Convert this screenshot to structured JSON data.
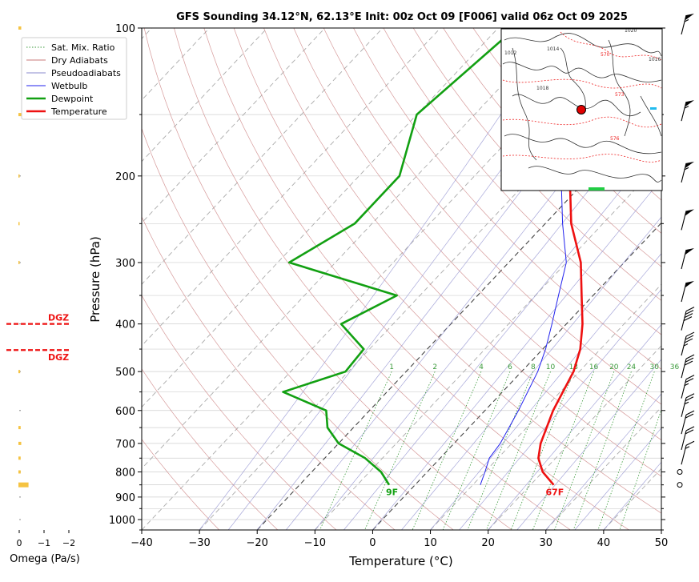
{
  "chart_data": {
    "type": "line",
    "title": "GFS Sounding 34.12°N, 62.13°E Init: 00z Oct 09 [F006] valid 06z Oct 09 2025",
    "xlabel": "Temperature (°C)",
    "ylabel": "Pressure (hPa)",
    "xlim": [
      -40,
      50
    ],
    "ylim": [
      1050,
      100
    ],
    "x_scale": "skew-T (log-p)",
    "grid": true,
    "legend_position": "upper-left",
    "x_ticks": [
      "−40",
      "−30",
      "−20",
      "−10",
      "0",
      "10",
      "20",
      "30",
      "40",
      "50"
    ],
    "y_ticks": [
      "100",
      "200",
      "300",
      "400",
      "500",
      "600",
      "700",
      "800",
      "900",
      "1000"
    ],
    "legend": [
      {
        "label": "Sat. Mix. Ratio",
        "color": "#3a9a3a",
        "style": "dotted"
      },
      {
        "label": "Dry Adiabats",
        "color": "#c87878",
        "style": "solid"
      },
      {
        "label": "Pseudoadiabats",
        "color": "#8888cc",
        "style": "solid"
      },
      {
        "label": "Wetbulb",
        "color": "#2222ee",
        "style": "solid"
      },
      {
        "label": "Dewpoint",
        "color": "#12a012",
        "style": "solid"
      },
      {
        "label": "Temperature",
        "color": "#ee1111",
        "style": "solid"
      }
    ],
    "mixing_ratio_labels": [
      "1",
      "2",
      "4",
      "6",
      "8",
      "10",
      "13",
      "16",
      "20",
      "24",
      "30",
      "36"
    ],
    "series": [
      {
        "name": "Temperature",
        "color": "#ee1111",
        "points": [
          [
            850,
            24
          ],
          [
            800,
            20
          ],
          [
            750,
            17
          ],
          [
            700,
            15
          ],
          [
            600,
            11.8
          ],
          [
            500,
            9
          ],
          [
            450,
            6.5
          ],
          [
            400,
            2.8
          ],
          [
            350,
            -2
          ],
          [
            300,
            -7.5
          ],
          [
            250,
            -15.5
          ],
          [
            200,
            -23.5
          ],
          [
            150,
            -31.5
          ],
          [
            100,
            -46
          ]
        ]
      },
      {
        "name": "Wetbulb",
        "color": "#2222ee",
        "points": [
          [
            850,
            11.3
          ],
          [
            800,
            10
          ],
          [
            750,
            8.5
          ],
          [
            700,
            8
          ],
          [
            600,
            5.8
          ],
          [
            500,
            2.8
          ],
          [
            450,
            0.5
          ],
          [
            400,
            -2.5
          ],
          [
            350,
            -6
          ],
          [
            300,
            -10
          ],
          [
            250,
            -17
          ],
          [
            200,
            -25
          ],
          [
            150,
            -32
          ]
        ]
      },
      {
        "name": "Dewpoint",
        "color": "#12a012",
        "points": [
          [
            850,
            -4.5
          ],
          [
            800,
            -8
          ],
          [
            750,
            -13
          ],
          [
            700,
            -20
          ],
          [
            650,
            -24.5
          ],
          [
            600,
            -27.5
          ],
          [
            550,
            -38
          ],
          [
            500,
            -30.5
          ],
          [
            450,
            -31
          ],
          [
            400,
            -39
          ],
          [
            350,
            -34
          ],
          [
            300,
            -58
          ],
          [
            250,
            -53
          ],
          [
            200,
            -53
          ],
          [
            150,
            -60
          ],
          [
            100,
            -57
          ]
        ]
      }
    ],
    "surface_labels": [
      {
        "text": "9F",
        "color": "#12a012"
      },
      {
        "text": "67F",
        "color": "#ee1111"
      }
    ],
    "wind_barbs_kt": [
      {
        "pressure": 100,
        "speed": 55
      },
      {
        "pressure": 150,
        "speed": 55
      },
      {
        "pressure": 200,
        "speed": 55
      },
      {
        "pressure": 250,
        "speed": 50
      },
      {
        "pressure": 300,
        "speed": 50
      },
      {
        "pressure": 350,
        "speed": 50
      },
      {
        "pressure": 400,
        "speed": 40
      },
      {
        "pressure": 450,
        "speed": 35
      },
      {
        "pressure": 500,
        "speed": 30
      },
      {
        "pressure": 550,
        "speed": 25
      },
      {
        "pressure": 600,
        "speed": 25
      },
      {
        "pressure": 650,
        "speed": 20
      },
      {
        "pressure": 700,
        "speed": 20
      },
      {
        "pressure": 750,
        "speed": 15
      },
      {
        "pressure": 800,
        "speed": 0
      },
      {
        "pressure": 850,
        "speed": 0
      }
    ],
    "omega_panel": {
      "xlabel": "Omega (Pa/s)",
      "x_ticks": [
        "0",
        "−1",
        "−2"
      ],
      "dgz": {
        "label": "DGZ",
        "top_hpa": 400,
        "bottom_hpa": 452,
        "color": "#ee1111"
      },
      "bars": [
        {
          "pressure": 100,
          "value": 0.05
        },
        {
          "pressure": 150,
          "value": 0.05
        },
        {
          "pressure": 200,
          "value": 0.02
        },
        {
          "pressure": 250,
          "value": 0.02
        },
        {
          "pressure": 300,
          "value": 0.02
        },
        {
          "pressure": 500,
          "value": 0.03
        },
        {
          "pressure": 650,
          "value": 0.04
        },
        {
          "pressure": 700,
          "value": 0.05
        },
        {
          "pressure": 750,
          "value": 0.04
        },
        {
          "pressure": 800,
          "value": 0.04
        },
        {
          "pressure": 850,
          "value": 0.18
        }
      ]
    },
    "inset_map": {
      "type": "surface pressure map",
      "contour_labels": [
        "1020",
        "1014",
        "1012",
        "1016",
        "1018",
        "570",
        "573",
        "576"
      ]
    }
  }
}
